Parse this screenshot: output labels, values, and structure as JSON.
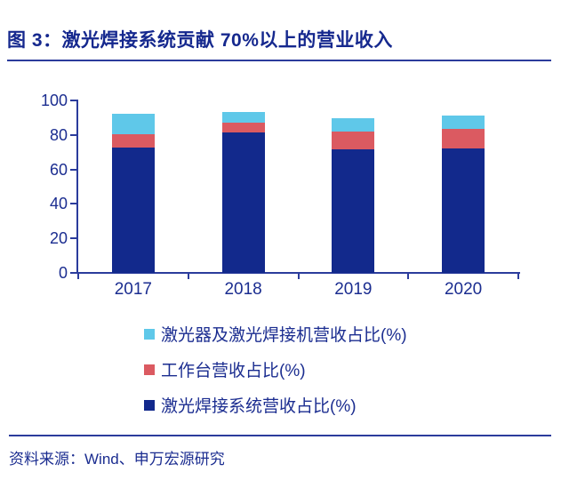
{
  "figure": {
    "title": "图 3：激光焊接系统贡献 70%以上的营业收入",
    "source": "资料来源：Wind、申万宏源研究"
  },
  "colors": {
    "navy": "#12298C",
    "red": "#DB5A61",
    "light_blue": "#5FC8E9",
    "text": "#1B2D90",
    "title_text": "#15288E",
    "axis": "#2B3C9C",
    "divider": "#2B3C9C",
    "background": "#FFFFFF"
  },
  "legend": [
    {
      "label": "激光器及激光焊接机营收占比(%)",
      "color_key": "light_blue"
    },
    {
      "label": "工作台营收占比(%)",
      "color_key": "red"
    },
    {
      "label": "激光焊接系统营收占比(%)",
      "color_key": "navy"
    }
  ],
  "chart_data": {
    "type": "bar",
    "stacked": true,
    "title": "图 3：激光焊接系统贡献 70%以上的营业收入",
    "categories": [
      "2017",
      "2018",
      "2019",
      "2020"
    ],
    "series": [
      {
        "name": "激光焊接系统营收占比(%)",
        "color_key": "navy",
        "values": [
          72.6,
          81.4,
          71.9,
          72.2
        ]
      },
      {
        "name": "工作台营收占比(%)",
        "color_key": "red",
        "values": [
          7.7,
          5.7,
          10.2,
          11.3
        ]
      },
      {
        "name": "激光器及激光焊接机营收占比(%)",
        "color_key": "light_blue",
        "values": [
          12.1,
          6.2,
          7.8,
          7.6
        ]
      }
    ],
    "xlabel": "",
    "ylabel": "",
    "ylim": [
      0,
      100
    ],
    "yticks": [
      0,
      20,
      40,
      60,
      80,
      100
    ],
    "grid": false,
    "legend_position": "bottom-left"
  }
}
